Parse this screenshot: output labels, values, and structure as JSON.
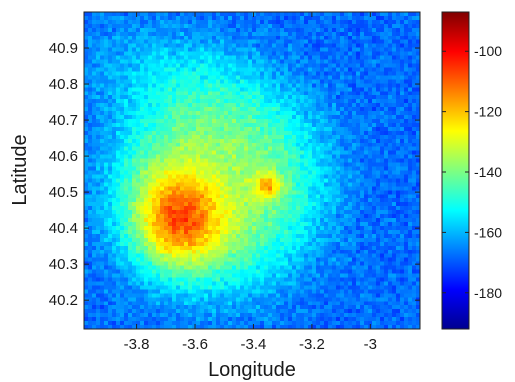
{
  "chart_data": {
    "type": "heatmap",
    "title": "",
    "xlabel": "Longitude",
    "ylabel": "Latitude",
    "xlim": [
      -3.98,
      -2.83
    ],
    "ylim": [
      40.12,
      41.0
    ],
    "x_ticks": [
      -3.8,
      -3.6,
      -3.4,
      -3.2,
      -3.0
    ],
    "x_tick_labels": [
      "-3.8",
      "-3.6",
      "-3.4",
      "-3.2",
      "-3"
    ],
    "y_ticks": [
      40.2,
      40.3,
      40.4,
      40.5,
      40.6,
      40.7,
      40.8,
      40.9
    ],
    "y_tick_labels": [
      "40.2",
      "40.3",
      "40.4",
      "40.5",
      "40.6",
      "40.7",
      "40.8",
      "40.9"
    ],
    "colormap": "jet",
    "colorbar": {
      "range": [
        -192,
        -87
      ],
      "ticks": [
        -100,
        -120,
        -140,
        -160,
        -180
      ],
      "tick_labels": [
        "-100",
        "-120",
        "-140",
        "-160",
        "-180"
      ]
    },
    "hotspots": [
      {
        "lon": -3.66,
        "lat": 40.42,
        "peak": -112
      },
      {
        "lon": -3.35,
        "lat": 40.515,
        "peak": -120
      }
    ],
    "background_level": -168
  }
}
